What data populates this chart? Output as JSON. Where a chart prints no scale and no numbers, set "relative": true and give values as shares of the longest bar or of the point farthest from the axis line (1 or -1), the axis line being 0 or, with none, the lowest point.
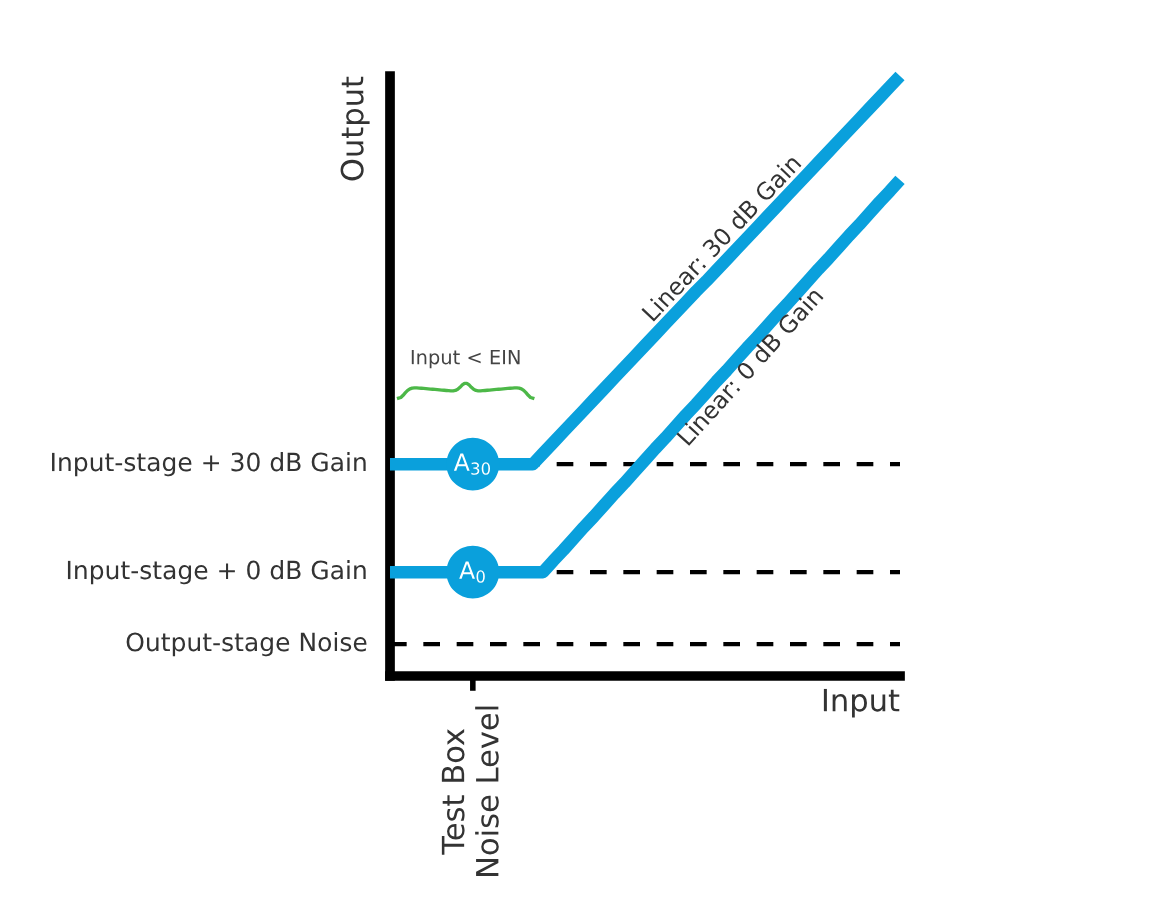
{
  "chart_data": {
    "type": "line",
    "relative": true,
    "xlabel": "Input",
    "ylabel": "Output",
    "categories": [
      null,
      null,
      null,
      null,
      null,
      null,
      null,
      null,
      null,
      null,
      null,
      null,
      null,
      null,
      null,
      null,
      null,
      null,
      null,
      null,
      null,
      null,
      null,
      null,
      null,
      null,
      null,
      null,
      null,
      null,
      null,
      null,
      null,
      null,
      null,
      null,
      null,
      null,
      null,
      null,
      null,
      null,
      null,
      null,
      null,
      null,
      null,
      null,
      null,
      null,
      null
    ],
    "grid": false,
    "legend": false,
    "marker": "none",
    "line_style": "solid",
    "series": [
      {
        "name": "Linear: 30 dB Gain",
        "color": "#0aa0dc",
        "values": [
          0.353,
          0.353,
          0.353,
          0.353,
          0.353,
          0.353,
          0.353,
          0.353,
          0.353,
          0.353,
          0.353,
          0.353,
          0.353,
          0.353,
          0.353,
          0.371,
          0.389,
          0.407,
          0.425,
          0.443,
          0.461,
          0.479,
          0.497,
          0.515,
          0.533,
          0.551,
          0.569,
          0.587,
          0.605,
          0.623,
          0.641,
          0.658,
          0.676,
          0.694,
          0.712,
          0.73,
          0.748,
          0.766,
          0.784,
          0.802,
          0.82,
          0.838,
          0.856,
          0.874,
          0.892,
          0.91,
          0.928,
          0.946,
          0.964,
          0.982,
          1.0
        ]
      },
      {
        "name": "Linear: 0 dB Gain",
        "color": "#0aa0dc",
        "values": [
          0.173,
          0.173,
          0.173,
          0.173,
          0.173,
          0.173,
          0.173,
          0.173,
          0.173,
          0.173,
          0.173,
          0.173,
          0.173,
          0.173,
          0.173,
          0.173,
          0.192,
          0.21,
          0.229,
          0.248,
          0.266,
          0.285,
          0.304,
          0.322,
          0.341,
          0.36,
          0.379,
          0.397,
          0.416,
          0.435,
          0.453,
          0.472,
          0.491,
          0.509,
          0.528,
          0.547,
          0.565,
          0.584,
          0.603,
          0.621,
          0.64,
          0.659,
          0.678,
          0.696,
          0.715,
          0.734,
          0.752,
          0.771,
          0.79,
          0.808,
          0.827
        ]
      }
    ],
    "ref_lines": [
      {
        "axis": "y",
        "value": 0.353,
        "label": "Input-stage + 30 dB Gain",
        "color": "#000000",
        "line_style": "dashed"
      },
      {
        "axis": "y",
        "value": 0.173,
        "label": "Input-stage + 0 dB Gain",
        "color": "#000000",
        "line_style": "dashed"
      },
      {
        "axis": "y",
        "value": 0.053,
        "label": "Output-stage Noise",
        "color": "#000000",
        "line_style": "dashed"
      }
    ],
    "annotations": [
      "A$_{30}$",
      "A$_{0}$",
      "Input < EIN",
      "Test Box\nNoise Level"
    ]
  }
}
